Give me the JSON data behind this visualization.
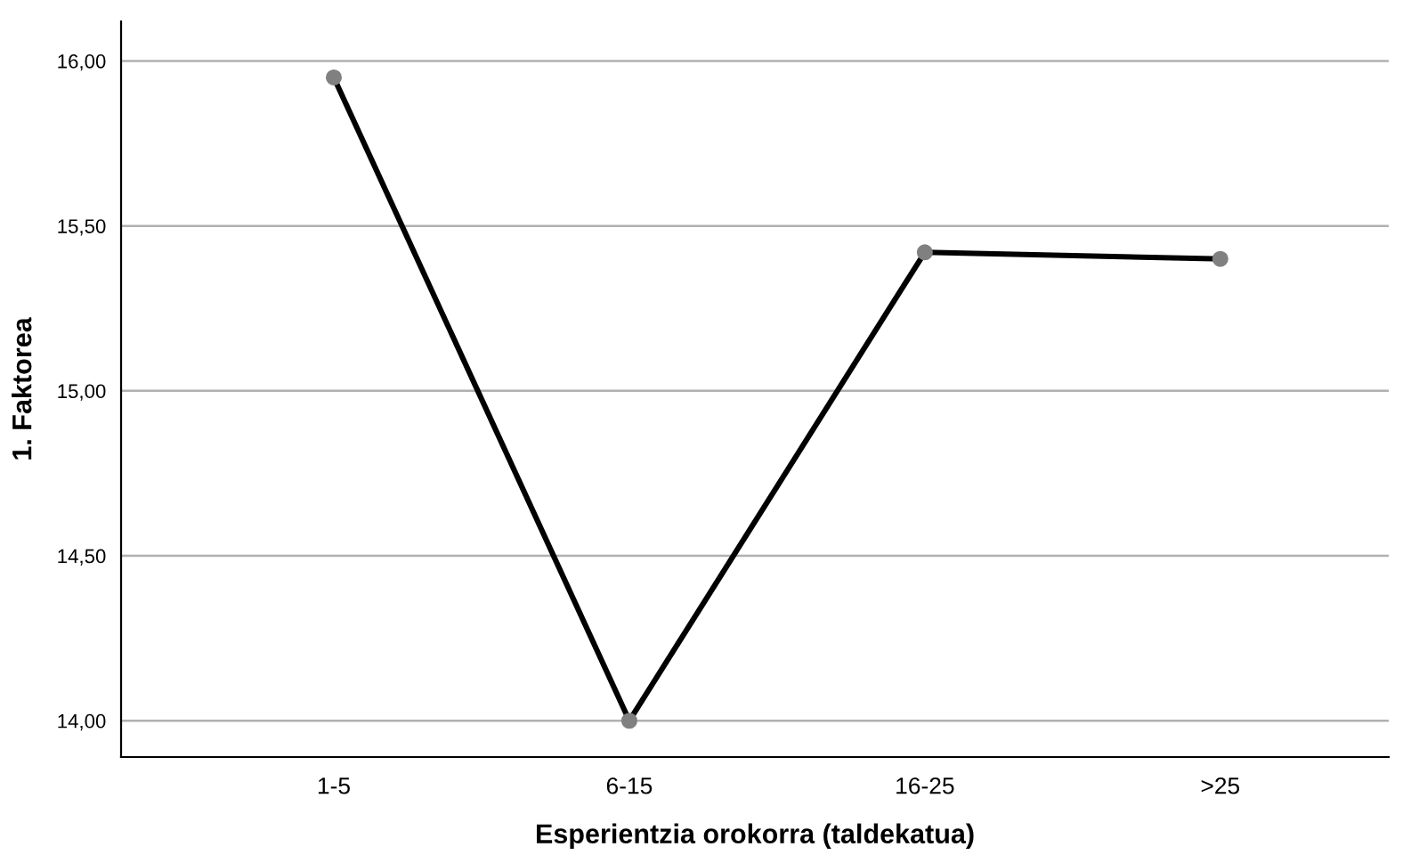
{
  "chart_data": {
    "type": "line",
    "xlabel": "Esperientzia orokorra (taldekatua)",
    "ylabel": "1. Faktorea",
    "categories": [
      "1-5",
      "6-15",
      "16-25",
      ">25"
    ],
    "series": [
      {
        "color": "#000000",
        "values": [
          15.95,
          14.0,
          15.42,
          15.4
        ]
      }
    ],
    "ylim": [
      13.89,
      16.12
    ],
    "yticks": [
      {
        "value": 14,
        "label": "14,00"
      },
      {
        "value": 14.5,
        "label": "14,50"
      },
      {
        "value": 15,
        "label": "15,00"
      },
      {
        "value": 15.5,
        "label": "15,50"
      },
      {
        "value": 16,
        "label": "16,00"
      }
    ],
    "grid": "y",
    "marker": "circle",
    "line_style": "solid"
  }
}
